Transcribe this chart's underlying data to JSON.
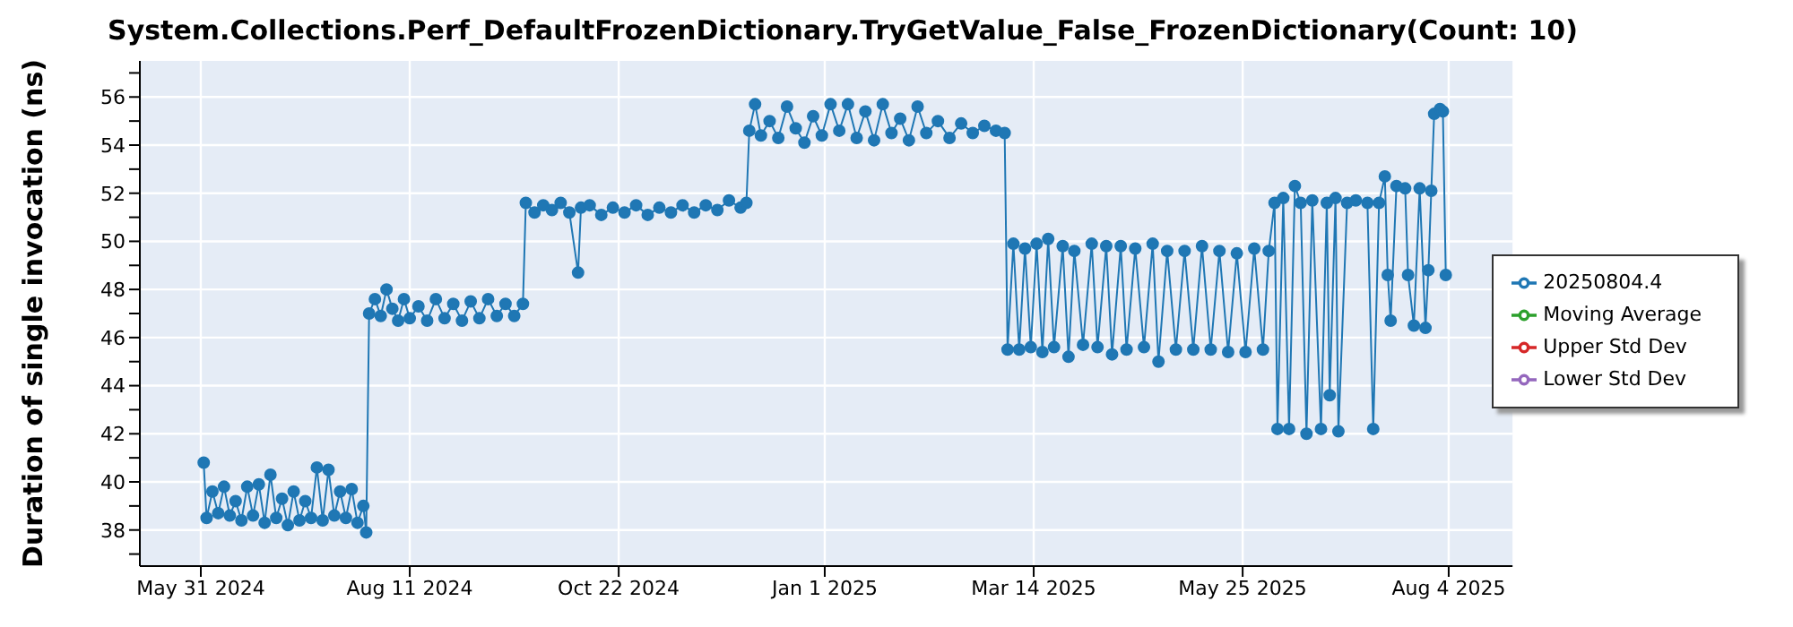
{
  "chart_data": {
    "type": "line",
    "title": "System.Collections.Perf_DefaultFrozenDictionary.TryGetValue_False_FrozenDictionary(Count: 10)",
    "ylabel": "Duration of single invocation (ns)",
    "x": [
      "2024-06-01",
      "2024-06-02",
      "2024-06-04",
      "2024-06-06",
      "2024-06-08",
      "2024-06-10",
      "2024-06-12",
      "2024-06-14",
      "2024-06-16",
      "2024-06-18",
      "2024-06-20",
      "2024-06-22",
      "2024-06-24",
      "2024-06-26",
      "2024-06-28",
      "2024-06-30",
      "2024-07-02",
      "2024-07-04",
      "2024-07-06",
      "2024-07-08",
      "2024-07-10",
      "2024-07-12",
      "2024-07-14",
      "2024-07-16",
      "2024-07-18",
      "2024-07-20",
      "2024-07-22",
      "2024-07-24",
      "2024-07-26",
      "2024-07-27",
      "2024-07-28",
      "2024-07-30",
      "2024-08-01",
      "2024-08-03",
      "2024-08-05",
      "2024-08-07",
      "2024-08-09",
      "2024-08-11",
      "2024-08-14",
      "2024-08-17",
      "2024-08-20",
      "2024-08-23",
      "2024-08-26",
      "2024-08-29",
      "2024-09-01",
      "2024-09-04",
      "2024-09-07",
      "2024-09-10",
      "2024-09-13",
      "2024-09-16",
      "2024-09-19",
      "2024-09-20",
      "2024-09-23",
      "2024-09-26",
      "2024-09-29",
      "2024-10-02",
      "2024-10-05",
      "2024-10-08",
      "2024-10-09",
      "2024-10-12",
      "2024-10-16",
      "2024-10-20",
      "2024-10-24",
      "2024-10-28",
      "2024-11-01",
      "2024-11-05",
      "2024-11-09",
      "2024-11-13",
      "2024-11-17",
      "2024-11-21",
      "2024-11-25",
      "2024-11-29",
      "2024-12-03",
      "2024-12-05",
      "2024-12-06",
      "2024-12-08",
      "2024-12-10",
      "2024-12-13",
      "2024-12-16",
      "2024-12-19",
      "2024-12-22",
      "2024-12-25",
      "2024-12-28",
      "2024-12-31",
      "2025-01-03",
      "2025-01-06",
      "2025-01-09",
      "2025-01-12",
      "2025-01-15",
      "2025-01-18",
      "2025-01-21",
      "2025-01-24",
      "2025-01-27",
      "2025-01-30",
      "2025-02-02",
      "2025-02-05",
      "2025-02-09",
      "2025-02-13",
      "2025-02-17",
      "2025-02-21",
      "2025-02-25",
      "2025-03-01",
      "2025-03-04",
      "2025-03-05",
      "2025-03-07",
      "2025-03-09",
      "2025-03-11",
      "2025-03-13",
      "2025-03-15",
      "2025-03-17",
      "2025-03-19",
      "2025-03-21",
      "2025-03-24",
      "2025-03-26",
      "2025-03-28",
      "2025-03-31",
      "2025-04-03",
      "2025-04-05",
      "2025-04-08",
      "2025-04-10",
      "2025-04-13",
      "2025-04-15",
      "2025-04-18",
      "2025-04-21",
      "2025-04-24",
      "2025-04-26",
      "2025-04-29",
      "2025-05-02",
      "2025-05-05",
      "2025-05-08",
      "2025-05-11",
      "2025-05-14",
      "2025-05-17",
      "2025-05-20",
      "2025-05-23",
      "2025-05-26",
      "2025-05-29",
      "2025-06-01",
      "2025-06-03",
      "2025-06-05",
      "2025-06-06",
      "2025-06-08",
      "2025-06-10",
      "2025-06-12",
      "2025-06-14",
      "2025-06-16",
      "2025-06-18",
      "2025-06-21",
      "2025-06-23",
      "2025-06-24",
      "2025-06-26",
      "2025-06-27",
      "2025-06-30",
      "2025-07-03",
      "2025-07-07",
      "2025-07-09",
      "2025-07-11",
      "2025-07-13",
      "2025-07-14",
      "2025-07-15",
      "2025-07-17",
      "2025-07-20",
      "2025-07-21",
      "2025-07-23",
      "2025-07-25",
      "2025-07-27",
      "2025-07-28",
      "2025-07-29",
      "2025-07-30",
      "2025-08-01",
      "2025-08-02",
      "2025-08-03"
    ],
    "series": [
      {
        "name": "20250804.4",
        "color": "#1f77b4",
        "values": [
          40.8,
          38.5,
          39.6,
          38.7,
          39.8,
          38.6,
          39.2,
          38.4,
          39.8,
          38.6,
          39.9,
          38.3,
          40.3,
          38.5,
          39.3,
          38.2,
          39.6,
          38.4,
          39.2,
          38.5,
          40.6,
          38.4,
          40.5,
          38.6,
          39.6,
          38.5,
          39.7,
          38.3,
          39.0,
          37.9,
          47.0,
          47.6,
          46.9,
          48.0,
          47.2,
          46.7,
          47.6,
          46.8,
          47.3,
          46.7,
          47.6,
          46.8,
          47.4,
          46.7,
          47.5,
          46.8,
          47.6,
          46.9,
          47.4,
          46.9,
          47.4,
          51.6,
          51.2,
          51.5,
          51.3,
          51.6,
          51.2,
          48.7,
          51.4,
          51.5,
          51.1,
          51.4,
          51.2,
          51.5,
          51.1,
          51.4,
          51.2,
          51.5,
          51.2,
          51.5,
          51.3,
          51.7,
          51.4,
          51.6,
          54.6,
          55.7,
          54.4,
          55.0,
          54.3,
          55.6,
          54.7,
          54.1,
          55.2,
          54.4,
          55.7,
          54.6,
          55.7,
          54.3,
          55.4,
          54.2,
          55.7,
          54.5,
          55.1,
          54.2,
          55.6,
          54.5,
          55.0,
          54.3,
          54.9,
          54.5,
          54.8,
          54.6,
          54.5,
          45.5,
          49.9,
          45.5,
          49.7,
          45.6,
          49.9,
          45.4,
          50.1,
          45.6,
          49.8,
          45.2,
          49.6,
          45.7,
          49.9,
          45.6,
          49.8,
          45.3,
          49.8,
          45.5,
          49.7,
          45.6,
          49.9,
          45.0,
          49.6,
          45.5,
          49.6,
          45.5,
          49.8,
          45.5,
          49.6,
          45.4,
          49.5,
          45.4,
          49.7,
          45.5,
          49.6,
          51.6,
          42.2,
          51.8,
          42.2,
          52.3,
          51.6,
          42.0,
          51.7,
          42.2,
          51.6,
          43.6,
          51.8,
          42.1,
          51.6,
          51.7,
          51.6,
          42.2,
          51.6,
          52.7,
          48.6,
          46.7,
          52.3,
          52.2,
          48.6,
          46.5,
          52.2,
          46.4,
          48.8,
          52.1,
          55.3,
          55.5,
          55.4,
          48.6
        ]
      },
      {
        "name": "Moving Average",
        "color": "#2ca02c",
        "values": [
          null,
          null,
          null,
          null,
          null,
          null,
          null,
          null,
          null,
          null,
          null,
          null,
          null,
          null,
          null,
          null,
          null,
          null,
          null,
          null,
          null,
          null,
          null,
          null,
          null,
          null,
          null,
          null,
          null,
          null,
          null,
          null,
          null,
          null,
          null,
          null,
          null,
          null,
          null,
          null,
          null,
          null,
          null,
          null,
          null,
          null,
          null,
          null,
          null,
          null,
          null,
          null,
          null,
          null,
          null,
          null,
          null,
          null,
          null,
          null,
          null,
          null,
          null,
          null,
          null,
          null,
          null,
          null,
          null,
          null,
          null,
          null,
          null,
          null,
          null,
          null,
          null,
          null,
          null,
          null,
          null,
          null,
          null,
          null,
          null,
          null,
          null,
          null,
          null,
          null,
          null,
          null,
          null,
          null,
          null,
          null,
          null,
          null,
          null,
          null,
          null,
          null,
          null,
          null,
          null,
          null,
          null,
          null,
          null,
          null,
          null,
          null,
          null,
          null,
          null,
          null,
          null,
          null,
          null,
          null,
          null,
          null,
          null,
          null,
          null,
          null,
          null,
          null,
          null,
          null,
          null,
          null,
          null,
          null,
          null,
          null,
          null,
          null,
          null,
          null,
          null,
          null,
          null,
          null,
          null,
          null,
          null,
          null,
          null,
          null,
          null,
          null,
          null,
          null,
          null,
          null,
          null,
          null,
          null,
          null,
          null,
          null,
          null,
          null,
          null,
          null,
          null,
          null,
          null,
          null,
          null,
          null
        ]
      },
      {
        "name": "Upper Std Dev",
        "color": "#d62728",
        "values": [
          null,
          null,
          null,
          null,
          null,
          null,
          null,
          null,
          null,
          null,
          null,
          null,
          null,
          null,
          null,
          null,
          null,
          null,
          null,
          null,
          null,
          null,
          null,
          null,
          null,
          null,
          null,
          null,
          null,
          null,
          null,
          null,
          null,
          null,
          null,
          null,
          null,
          null,
          null,
          null,
          null,
          null,
          null,
          null,
          null,
          null,
          null,
          null,
          null,
          null,
          null,
          null,
          null,
          null,
          null,
          null,
          null,
          null,
          null,
          null,
          null,
          null,
          null,
          null,
          null,
          null,
          null,
          null,
          null,
          null,
          null,
          null,
          null,
          null,
          null,
          null,
          null,
          null,
          null,
          null,
          null,
          null,
          null,
          null,
          null,
          null,
          null,
          null,
          null,
          null,
          null,
          null,
          null,
          null,
          null,
          null,
          null,
          null,
          null,
          null,
          null,
          null,
          null,
          null,
          null,
          null,
          null,
          null,
          null,
          null,
          null,
          null,
          null,
          null,
          null,
          null,
          null,
          null,
          null,
          null,
          null,
          null,
          null,
          null,
          null,
          null,
          null,
          null,
          null,
          null,
          null,
          null,
          null,
          null,
          null,
          null,
          null,
          null,
          null,
          null,
          null,
          null,
          null,
          null,
          null,
          null,
          null,
          null,
          null,
          null,
          null,
          null,
          null,
          null,
          null,
          null,
          null,
          null,
          null,
          null,
          null,
          null,
          null,
          null,
          null,
          null,
          null,
          null,
          null,
          null,
          null,
          null
        ]
      },
      {
        "name": "Lower Std Dev",
        "color": "#9467bd",
        "values": [
          null,
          null,
          null,
          null,
          null,
          null,
          null,
          null,
          null,
          null,
          null,
          null,
          null,
          null,
          null,
          null,
          null,
          null,
          null,
          null,
          null,
          null,
          null,
          null,
          null,
          null,
          null,
          null,
          null,
          null,
          null,
          null,
          null,
          null,
          null,
          null,
          null,
          null,
          null,
          null,
          null,
          null,
          null,
          null,
          null,
          null,
          null,
          null,
          null,
          null,
          null,
          null,
          null,
          null,
          null,
          null,
          null,
          null,
          null,
          null,
          null,
          null,
          null,
          null,
          null,
          null,
          null,
          null,
          null,
          null,
          null,
          null,
          null,
          null,
          null,
          null,
          null,
          null,
          null,
          null,
          null,
          null,
          null,
          null,
          null,
          null,
          null,
          null,
          null,
          null,
          null,
          null,
          null,
          null,
          null,
          null,
          null,
          null,
          null,
          null,
          null,
          null,
          null,
          null,
          null,
          null,
          null,
          null,
          null,
          null,
          null,
          null,
          null,
          null,
          null,
          null,
          null,
          null,
          null,
          null,
          null,
          null,
          null,
          null,
          null,
          null,
          null,
          null,
          null,
          null,
          null,
          null,
          null,
          null,
          null,
          null,
          null,
          null,
          null,
          null,
          null,
          null,
          null,
          null,
          null,
          null,
          null,
          null,
          null,
          null,
          null,
          null,
          null,
          null,
          null,
          null,
          null,
          null,
          null,
          null,
          null,
          null,
          null,
          null,
          null,
          null,
          null,
          null,
          null,
          null,
          null,
          null
        ]
      }
    ],
    "xlim": [
      "2024-05-10",
      "2025-08-26"
    ],
    "xticks": [
      {
        "value": "2024-05-31",
        "label": "May 31 2024"
      },
      {
        "value": "2024-08-11",
        "label": "Aug 11 2024"
      },
      {
        "value": "2024-10-22",
        "label": "Oct 22 2024"
      },
      {
        "value": "2025-01-01",
        "label": "Jan 1 2025"
      },
      {
        "value": "2025-03-14",
        "label": "Mar 14 2025"
      },
      {
        "value": "2025-05-25",
        "label": "May 25 2025"
      },
      {
        "value": "2025-08-04",
        "label": "Aug 4 2025"
      }
    ],
    "ylim": [
      36.5,
      57.5
    ],
    "yticks": [
      {
        "value": 37,
        "label": null
      },
      38,
      {
        "value": 39,
        "label": null
      },
      40,
      {
        "value": 41,
        "label": null
      },
      42,
      {
        "value": 43,
        "label": null
      },
      44,
      {
        "value": 45,
        "label": null
      },
      46,
      {
        "value": 47,
        "label": null
      },
      48,
      {
        "value": 49,
        "label": null
      },
      50,
      {
        "value": 51,
        "label": null
      },
      52,
      {
        "value": 53,
        "label": null
      },
      54,
      {
        "value": 55,
        "label": null
      },
      56,
      {
        "value": 57,
        "label": null
      }
    ],
    "grid": true,
    "legend": "right",
    "marker": "circle",
    "line_style": "solid"
  }
}
